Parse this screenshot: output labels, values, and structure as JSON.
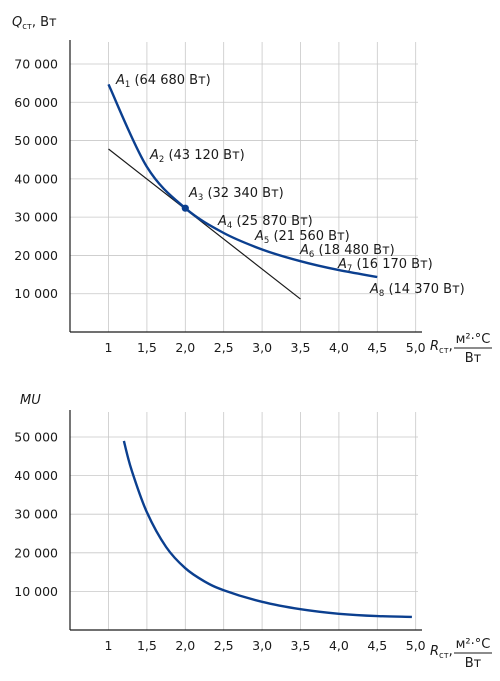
{
  "chart_data": [
    {
      "type": "line",
      "y_axis_label": {
        "main": "Q",
        "sub": "ст",
        "rest": ", Вт"
      },
      "x_axis_label": {
        "main": "R",
        "sub": "ст",
        "rest": ",",
        "num": "м²·°С",
        "den": "Вт"
      },
      "xlim": [
        0.5,
        5.0
      ],
      "ylim": [
        0,
        70000
      ],
      "x_ticks": [
        "1",
        "1,5",
        "2,0",
        "2,5",
        "3,0",
        "3,5",
        "4,0",
        "4,5",
        "5,0"
      ],
      "x_tick_values": [
        1,
        1.5,
        2,
        2.5,
        3,
        3.5,
        4,
        4.5,
        5
      ],
      "y_ticks": [
        "70 000",
        "60 000",
        "50 000",
        "40 000",
        "30 000",
        "20 000",
        "10 000"
      ],
      "y_tick_values": [
        70000,
        60000,
        50000,
        40000,
        30000,
        20000,
        10000
      ],
      "grid": true,
      "series": [
        {
          "x": [
            1,
            1.5,
            2,
            2.5,
            3,
            3.5,
            4,
            4.5
          ],
          "y": [
            64680,
            43120,
            32340,
            25870,
            21560,
            18480,
            16170,
            14370
          ]
        }
      ],
      "highlight_point": {
        "x": 2,
        "y": 32340
      },
      "tangent_line": {
        "x": [
          1,
          3.5
        ],
        "y": [
          47800,
          8600
        ]
      },
      "points": [
        {
          "letter": "A",
          "sub": "1",
          "value": "(64 680 Вт)",
          "x": 1,
          "y": 64680
        },
        {
          "letter": "A",
          "sub": "2",
          "value": "(43 120 Вт)",
          "x": 1.5,
          "y": 43120
        },
        {
          "letter": "A",
          "sub": "3",
          "value": "(32 340 Вт)",
          "x": 2,
          "y": 32340
        },
        {
          "letter": "A",
          "sub": "4",
          "value": "(25 870 Вт)",
          "x": 2.5,
          "y": 25870
        },
        {
          "letter": "A",
          "sub": "5",
          "value": "(21 560 Вт)",
          "x": 3,
          "y": 21560
        },
        {
          "letter": "A",
          "sub": "6",
          "value": "(18 480 Вт)",
          "x": 3.5,
          "y": 18480
        },
        {
          "letter": "A",
          "sub": "7",
          "value": "(16 170 Вт)",
          "x": 4,
          "y": 16170
        },
        {
          "letter": "A",
          "sub": "8",
          "value": "(14 370 Вт)",
          "x": 4.5,
          "y": 14370
        }
      ]
    },
    {
      "type": "line",
      "y_axis_label": {
        "main": "MU"
      },
      "x_axis_label": {
        "main": "R",
        "sub": "ст",
        "rest": ",",
        "num": "м²·°С",
        "den": "Вт"
      },
      "xlim": [
        0.5,
        5.0
      ],
      "ylim": [
        0,
        50000
      ],
      "x_ticks": [
        "1",
        "1,5",
        "2,0",
        "2,5",
        "3,0",
        "3,5",
        "4,0",
        "4,5",
        "5,0"
      ],
      "x_tick_values": [
        1,
        1.5,
        2,
        2.5,
        3,
        3.5,
        4,
        4.5,
        5
      ],
      "y_ticks": [
        "50 000",
        "40 000",
        "30 000",
        "20 000",
        "10 000"
      ],
      "y_tick_values": [
        50000,
        40000,
        30000,
        20000,
        10000
      ],
      "grid": true,
      "series": [
        {
          "x": [
            1.2,
            1.3,
            1.5,
            1.75,
            2.0,
            2.25,
            2.5,
            3.0,
            3.5,
            4.0,
            4.5,
            4.95
          ],
          "y": [
            49000,
            41500,
            30500,
            21500,
            16000,
            12600,
            10300,
            7300,
            5400,
            4200,
            3600,
            3400
          ]
        }
      ]
    }
  ]
}
